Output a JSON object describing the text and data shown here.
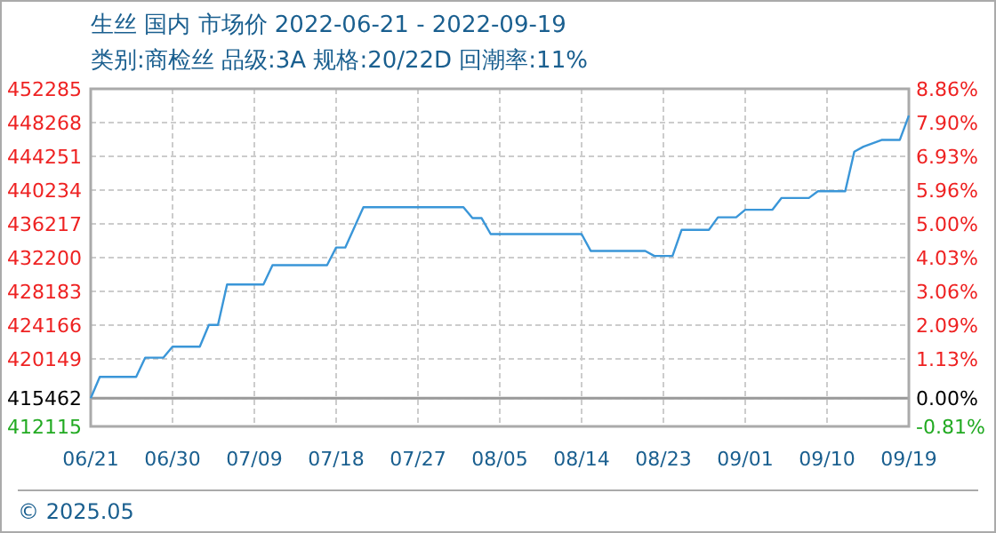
{
  "chart_data": {
    "type": "line",
    "title": "生丝 国内 市场价 2022-06-21 - 2022-09-19",
    "subtitle": "类别:商检丝 品级:3A 规格:20/22D 回潮率:11%",
    "annotations": [
      "© 2025.05"
    ],
    "xlim": [
      "2022-06-21",
      "2022-09-19"
    ],
    "xticks": [
      {
        "value": "2022-06-21",
        "label": "06/21"
      },
      {
        "value": "2022-06-30",
        "label": "06/30"
      },
      {
        "value": "2022-07-09",
        "label": "07/09"
      },
      {
        "value": "2022-07-18",
        "label": "07/18"
      },
      {
        "value": "2022-07-27",
        "label": "07/27"
      },
      {
        "value": "2022-08-05",
        "label": "08/05"
      },
      {
        "value": "2022-08-14",
        "label": "08/14"
      },
      {
        "value": "2022-08-23",
        "label": "08/23"
      },
      {
        "value": "2022-09-01",
        "label": "09/01"
      },
      {
        "value": "2022-09-10",
        "label": "09/10"
      },
      {
        "value": "2022-09-19",
        "label": "09/19"
      }
    ],
    "ylim": [
      412115,
      452285
    ],
    "yticks": [
      452285,
      448268,
      444251,
      440234,
      436217,
      432200,
      428183,
      424166,
      420149,
      415462,
      412115
    ],
    "y2lim": [
      -0.81,
      8.86
    ],
    "y2ticks": [
      {
        "value": 8.86,
        "label": "8.86%"
      },
      {
        "value": 7.9,
        "label": "7.90%"
      },
      {
        "value": 6.93,
        "label": "6.93%"
      },
      {
        "value": 5.96,
        "label": "5.96%"
      },
      {
        "value": 5.0,
        "label": "5.00%"
      },
      {
        "value": 4.03,
        "label": "4.03%"
      },
      {
        "value": 3.06,
        "label": "3.06%"
      },
      {
        "value": 2.09,
        "label": "2.09%"
      },
      {
        "value": 1.13,
        "label": "1.13%"
      },
      {
        "value": 0,
        "label": "0.00%"
      },
      {
        "value": -0.81,
        "label": "-0.81%"
      }
    ],
    "ref_lines": [
      {
        "axis": "y",
        "value": 415462,
        "color": "#999999"
      }
    ],
    "grid": true,
    "marker": "none",
    "line_style": "solid",
    "series": [
      {
        "color": "#3a96d8",
        "x": [
          "2022-06-21",
          "2022-06-22",
          "2022-06-26",
          "2022-06-27",
          "2022-06-29",
          "2022-06-30",
          "2022-07-03",
          "2022-07-04",
          "2022-07-05",
          "2022-07-06",
          "2022-07-10",
          "2022-07-11",
          "2022-07-17",
          "2022-07-18",
          "2022-07-19",
          "2022-07-20",
          "2022-07-21",
          "2022-08-01",
          "2022-08-02",
          "2022-08-03",
          "2022-08-04",
          "2022-08-14",
          "2022-08-15",
          "2022-08-21",
          "2022-08-22",
          "2022-08-24",
          "2022-08-25",
          "2022-08-28",
          "2022-08-29",
          "2022-08-31",
          "2022-09-01",
          "2022-09-04",
          "2022-09-05",
          "2022-09-08",
          "2022-09-09",
          "2022-09-12",
          "2022-09-13",
          "2022-09-14",
          "2022-09-16",
          "2022-09-18",
          "2022-09-19"
        ],
        "values": [
          415462,
          418000,
          418000,
          420300,
          420300,
          421600,
          421600,
          424200,
          424200,
          429000,
          429000,
          431300,
          431300,
          433400,
          433400,
          435800,
          438200,
          438200,
          436900,
          436900,
          435000,
          435000,
          433000,
          433000,
          432400,
          432400,
          435500,
          435500,
          437000,
          437000,
          437900,
          437900,
          439300,
          439300,
          440100,
          440100,
          444800,
          445400,
          446200,
          446200,
          449100
        ]
      }
    ]
  }
}
